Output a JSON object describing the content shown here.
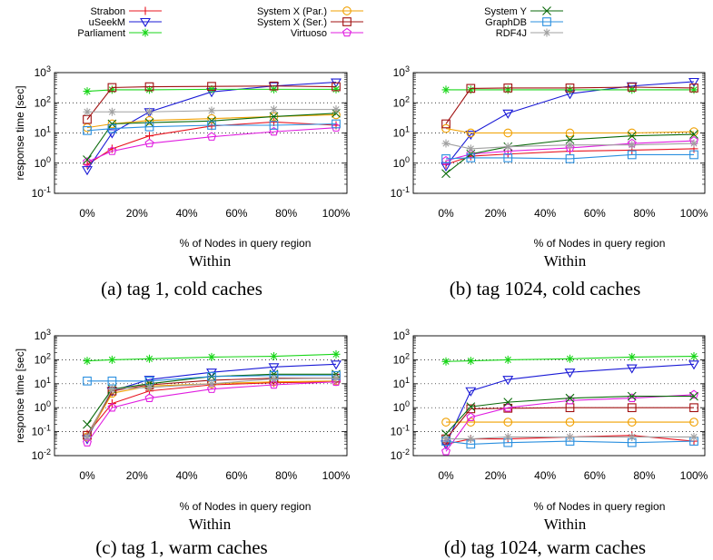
{
  "legend": [
    {
      "name": "Strabon",
      "color": "#e8141f",
      "marker": "plus"
    },
    {
      "name": "uSeekM",
      "color": "#1a1ad6",
      "marker": "triangle-down"
    },
    {
      "name": "Parliament",
      "color": "#19d619",
      "marker": "star"
    },
    {
      "name": "System X (Par.)",
      "color": "#f0a000",
      "marker": "circle"
    },
    {
      "name": "System X (Ser.)",
      "color": "#a01010",
      "marker": "square"
    },
    {
      "name": "Virtuoso",
      "color": "#e01ee0",
      "marker": "pentagon"
    },
    {
      "name": "System Y",
      "color": "#0a6a0a",
      "marker": "x"
    },
    {
      "name": "GraphDB",
      "color": "#2a8fdf",
      "marker": "square"
    },
    {
      "name": "RDF4J",
      "color": "#a0a0a0",
      "marker": "star"
    }
  ],
  "chart_data": [
    {
      "type": "line",
      "caption": "(a)   tag 1, cold caches",
      "title": "Within",
      "xlabel": "% of Nodes in query region",
      "ylabel": "response time [sec]",
      "yscale": "log",
      "ylim": [
        0.1,
        1000
      ],
      "ytick_labels": [
        "10-1",
        "100",
        "101",
        "102",
        "103"
      ],
      "x": [
        "0%",
        "10%",
        "25%",
        "50%",
        "75%",
        "100%"
      ],
      "xtick_labels": [
        "0%",
        "20%",
        "40%",
        "60%",
        "80%",
        "100%"
      ],
      "series": [
        {
          "name": "Strabon",
          "values": [
            0.9,
            3,
            8,
            17,
            23,
            18
          ]
        },
        {
          "name": "uSeekM",
          "values": [
            0.6,
            10,
            50,
            230,
            360,
            480
          ]
        },
        {
          "name": "Parliament",
          "values": [
            240,
            270,
            270,
            280,
            280,
            280
          ]
        },
        {
          "name": "System X (Par.)",
          "values": [
            15,
            20,
            26,
            30,
            35,
            40
          ]
        },
        {
          "name": "System X (Ser.)",
          "values": [
            28,
            320,
            340,
            350,
            360,
            340
          ]
        },
        {
          "name": "Virtuoso",
          "values": [
            1.1,
            2.5,
            4.5,
            7.5,
            11,
            15
          ]
        },
        {
          "name": "System Y",
          "values": [
            1.3,
            20,
            22,
            25,
            35,
            45
          ]
        },
        {
          "name": "GraphDB",
          "values": [
            12,
            14,
            16,
            18,
            18,
            20
          ]
        },
        {
          "name": "RDF4J",
          "values": [
            50,
            50,
            50,
            55,
            60,
            60
          ]
        }
      ]
    },
    {
      "type": "line",
      "caption": "(b)   tag 1024, cold caches",
      "title": "Within",
      "xlabel": "% of Nodes in query region",
      "ylabel": "",
      "yscale": "log",
      "ylim": [
        0.1,
        1000
      ],
      "ytick_labels": [
        "10-1",
        "100",
        "101",
        "102",
        "103"
      ],
      "x": [
        "0%",
        "10%",
        "25%",
        "50%",
        "75%",
        "100%"
      ],
      "xtick_labels": [
        "0%",
        "20%",
        "40%",
        "60%",
        "80%",
        "100%"
      ],
      "series": [
        {
          "name": "Strabon",
          "values": [
            0.9,
            1.7,
            2,
            2.5,
            2.7,
            3
          ]
        },
        {
          "name": "uSeekM",
          "values": [
            0.8,
            9,
            45,
            200,
            360,
            500
          ]
        },
        {
          "name": "Parliament",
          "values": [
            270,
            270,
            270,
            270,
            270,
            270
          ]
        },
        {
          "name": "System X (Par.)",
          "values": [
            14,
            10,
            10,
            10,
            10,
            11
          ]
        },
        {
          "name": "System X (Ser.)",
          "values": [
            20,
            300,
            310,
            310,
            330,
            310
          ]
        },
        {
          "name": "Virtuoso",
          "values": [
            1.2,
            2,
            2.5,
            3.2,
            4.5,
            5.5
          ]
        },
        {
          "name": "System Y",
          "values": [
            0.45,
            2,
            3.5,
            6,
            8,
            9
          ]
        },
        {
          "name": "GraphDB",
          "values": [
            1.4,
            1.5,
            1.5,
            1.4,
            1.9,
            1.9
          ]
        },
        {
          "name": "RDF4J",
          "values": [
            4.5,
            3,
            3.5,
            4,
            4,
            4.5
          ]
        }
      ]
    },
    {
      "type": "line",
      "caption": "(c)   tag 1, warm caches",
      "title": "Within",
      "xlabel": "% of Nodes in query region",
      "ylabel": "response time [sec]",
      "yscale": "log",
      "ylim": [
        0.01,
        1000
      ],
      "ytick_labels": [
        "10-2",
        "10-1",
        "100",
        "101",
        "102",
        "103"
      ],
      "x": [
        "0%",
        "10%",
        "25%",
        "50%",
        "75%",
        "100%"
      ],
      "xtick_labels": [
        "0%",
        "20%",
        "40%",
        "60%",
        "80%",
        "100%"
      ],
      "series": [
        {
          "name": "Strabon",
          "values": [
            0.08,
            1.5,
            5,
            9,
            11,
            12
          ]
        },
        {
          "name": "uSeekM",
          "values": [
            0.05,
            5,
            15,
            30,
            50,
            65
          ]
        },
        {
          "name": "Parliament",
          "values": [
            90,
            100,
            110,
            130,
            140,
            170
          ]
        },
        {
          "name": "System X (Par.)",
          "values": [
            0.06,
            4,
            8,
            10,
            12,
            13
          ]
        },
        {
          "name": "System X (Ser.)",
          "values": [
            0.07,
            5,
            9,
            14,
            17,
            17
          ]
        },
        {
          "name": "Virtuoso",
          "values": [
            0.035,
            1,
            2.5,
            6,
            9,
            12
          ]
        },
        {
          "name": "System Y",
          "values": [
            0.2,
            6,
            10,
            20,
            25,
            25
          ]
        },
        {
          "name": "GraphDB",
          "values": [
            13,
            13,
            13,
            20,
            22,
            22
          ]
        },
        {
          "name": "RDF4J",
          "values": [
            0.06,
            6,
            7,
            10,
            16,
            17
          ]
        }
      ]
    },
    {
      "type": "line",
      "caption": "(d)   tag 1024, warm caches",
      "title": "Within",
      "xlabel": "% of Nodes in query region",
      "ylabel": "",
      "yscale": "log",
      "ylim": [
        0.01,
        1000
      ],
      "ytick_labels": [
        "10-2",
        "10-1",
        "100",
        "101",
        "102",
        "103"
      ],
      "x": [
        "0%",
        "10%",
        "25%",
        "50%",
        "75%",
        "100%"
      ],
      "xtick_labels": [
        "0%",
        "20%",
        "40%",
        "60%",
        "80%",
        "100%"
      ],
      "series": [
        {
          "name": "Strabon",
          "values": [
            0.03,
            0.05,
            0.05,
            0.06,
            0.07,
            0.04
          ]
        },
        {
          "name": "uSeekM",
          "values": [
            0.03,
            5,
            15,
            30,
            45,
            65
          ]
        },
        {
          "name": "Parliament",
          "values": [
            85,
            90,
            100,
            110,
            130,
            140
          ]
        },
        {
          "name": "System X (Par.)",
          "values": [
            0.25,
            0.25,
            0.25,
            0.25,
            0.25,
            0.25
          ]
        },
        {
          "name": "System X (Ser.)",
          "values": [
            0.05,
            0.9,
            0.95,
            1,
            1,
            1
          ]
        },
        {
          "name": "Virtuoso",
          "values": [
            0.015,
            0.4,
            1,
            2,
            2.5,
            3.5
          ]
        },
        {
          "name": "System Y",
          "values": [
            0.08,
            1.1,
            1.7,
            2.5,
            3,
            3
          ]
        },
        {
          "name": "GraphDB",
          "values": [
            0.04,
            0.03,
            0.035,
            0.04,
            0.035,
            0.04
          ]
        },
        {
          "name": "RDF4J",
          "values": [
            0.05,
            0.05,
            0.06,
            0.06,
            0.06,
            0.06
          ]
        }
      ]
    }
  ]
}
